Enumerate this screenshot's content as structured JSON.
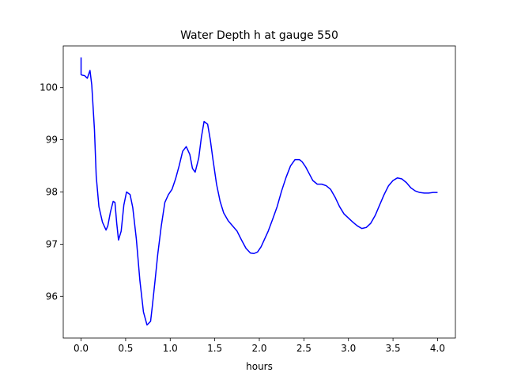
{
  "chart_data": {
    "type": "line",
    "title": "Water Depth h at gauge 550",
    "xlabel": "hours",
    "ylabel": "",
    "xlim": [
      -0.2,
      4.2
    ],
    "ylim": [
      95.2,
      100.8
    ],
    "x_ticks": [
      0.0,
      0.5,
      1.0,
      1.5,
      2.0,
      2.5,
      3.0,
      3.5,
      4.0
    ],
    "x_tick_labels": [
      "0.0",
      "0.5",
      "1.0",
      "1.5",
      "2.0",
      "2.5",
      "3.0",
      "3.5",
      "4.0"
    ],
    "y_ticks": [
      96,
      97,
      98,
      99,
      100
    ],
    "y_tick_labels": [
      "96",
      "97",
      "98",
      "99",
      "100"
    ],
    "grid": false,
    "series": [
      {
        "color": "#0000ff",
        "x": [
          0.0,
          0.0,
          0.01,
          0.04,
          0.07,
          0.1,
          0.12,
          0.15,
          0.17,
          0.2,
          0.24,
          0.28,
          0.3,
          0.33,
          0.36,
          0.38,
          0.4,
          0.42,
          0.45,
          0.48,
          0.51,
          0.55,
          0.58,
          0.62,
          0.66,
          0.7,
          0.74,
          0.78,
          0.8,
          0.83,
          0.86,
          0.9,
          0.94,
          0.98,
          1.02,
          1.06,
          1.1,
          1.14,
          1.18,
          1.22,
          1.25,
          1.28,
          1.32,
          1.35,
          1.38,
          1.42,
          1.45,
          1.48,
          1.52,
          1.56,
          1.6,
          1.65,
          1.7,
          1.75,
          1.8,
          1.85,
          1.9,
          1.94,
          1.98,
          2.02,
          2.06,
          2.1,
          2.15,
          2.2,
          2.25,
          2.3,
          2.35,
          2.4,
          2.45,
          2.48,
          2.52,
          2.56,
          2.6,
          2.65,
          2.7,
          2.75,
          2.8,
          2.85,
          2.9,
          2.95,
          3.0,
          3.05,
          3.1,
          3.15,
          3.2,
          3.25,
          3.3,
          3.35,
          3.4,
          3.45,
          3.5,
          3.55,
          3.6,
          3.65,
          3.7,
          3.75,
          3.8,
          3.85,
          3.9,
          3.95,
          4.0
        ],
        "y": [
          100.58,
          100.25,
          100.24,
          100.23,
          100.18,
          100.33,
          100.05,
          99.2,
          98.3,
          97.72,
          97.42,
          97.27,
          97.35,
          97.62,
          97.82,
          97.8,
          97.4,
          97.08,
          97.25,
          97.75,
          98.0,
          97.95,
          97.7,
          97.1,
          96.3,
          95.7,
          95.45,
          95.52,
          95.82,
          96.3,
          96.8,
          97.35,
          97.8,
          97.95,
          98.05,
          98.25,
          98.5,
          98.78,
          98.87,
          98.72,
          98.45,
          98.38,
          98.65,
          99.05,
          99.35,
          99.3,
          99.0,
          98.62,
          98.15,
          97.82,
          97.6,
          97.45,
          97.35,
          97.25,
          97.08,
          96.92,
          96.83,
          96.82,
          96.85,
          96.95,
          97.1,
          97.25,
          97.48,
          97.72,
          98.02,
          98.28,
          98.5,
          98.62,
          98.62,
          98.58,
          98.48,
          98.35,
          98.22,
          98.15,
          98.15,
          98.12,
          98.05,
          97.9,
          97.72,
          97.58,
          97.5,
          97.42,
          97.35,
          97.3,
          97.32,
          97.4,
          97.55,
          97.75,
          97.95,
          98.12,
          98.22,
          98.27,
          98.25,
          98.18,
          98.08,
          98.02,
          97.99,
          97.98,
          97.98,
          97.99,
          97.99
        ]
      }
    ]
  }
}
